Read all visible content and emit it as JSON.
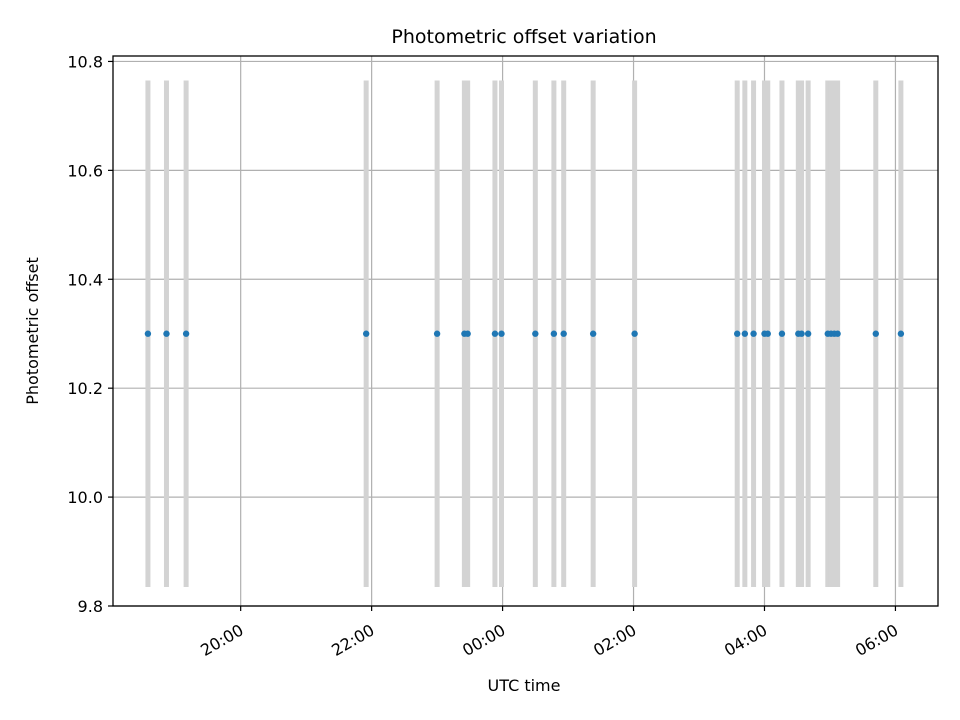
{
  "chart_data": {
    "type": "scatter",
    "title": "Photometric offset variation",
    "xlabel": "UTC time",
    "ylabel": "Photometric offset",
    "x_tick_labels": [
      "20:00",
      "22:00",
      "00:00",
      "02:00",
      "04:00",
      "06:00"
    ],
    "x_tick_hours": [
      20,
      22,
      24,
      26,
      28,
      30
    ],
    "xlim_hours": [
      18.05,
      30.65
    ],
    "ylim": [
      9.8,
      10.81
    ],
    "y_ticks": [
      9.8,
      10.0,
      10.2,
      10.4,
      10.6,
      10.8
    ],
    "y_tick_labels": [
      "9.8",
      "10.0",
      "10.2",
      "10.4",
      "10.6",
      "10.8"
    ],
    "grid": true,
    "points": {
      "x_utc": [
        "18:35",
        "18:52",
        "19:10",
        "21:55",
        "23:00",
        "23:25",
        "23:28",
        "23:53",
        "23:59",
        "00:30",
        "00:47",
        "00:56",
        "01:23",
        "02:01",
        "03:35",
        "03:42",
        "03:50",
        "04:00",
        "04:03",
        "04:16",
        "04:31",
        "04:34",
        "04:40",
        "04:58",
        "05:01",
        "05:04",
        "05:07",
        "05:42",
        "06:05"
      ],
      "y": [
        10.3,
        10.3,
        10.3,
        10.3,
        10.3,
        10.3,
        10.3,
        10.3,
        10.3,
        10.3,
        10.3,
        10.3,
        10.3,
        10.3,
        10.3,
        10.3,
        10.3,
        10.3,
        10.3,
        10.3,
        10.3,
        10.3,
        10.3,
        10.3,
        10.3,
        10.3,
        10.3,
        10.3,
        10.3
      ],
      "color": "#1f77b4"
    },
    "error_bars": {
      "low": 9.835,
      "high": 10.765,
      "color": "#d3d3d3"
    }
  }
}
